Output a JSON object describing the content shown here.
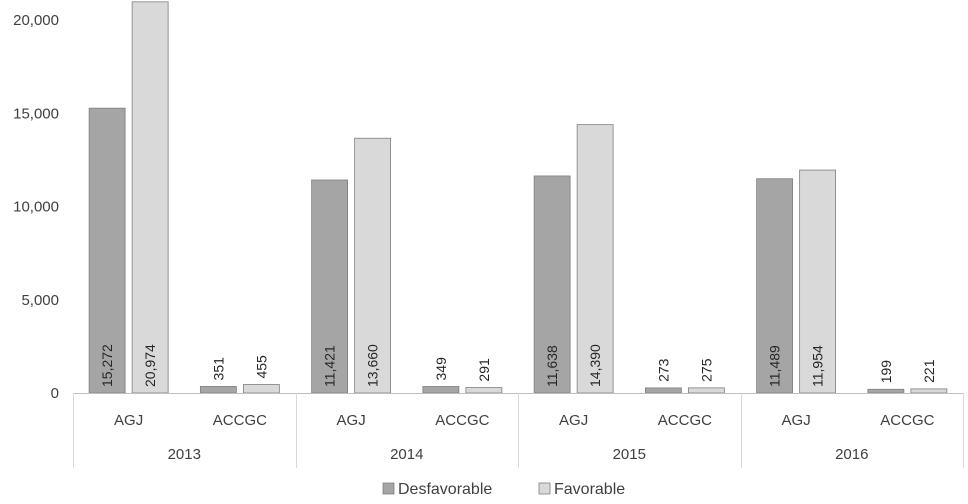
{
  "chart_data": {
    "type": "bar",
    "groups": [
      {
        "year": "2013",
        "categories": [
          {
            "label": "AGJ",
            "values": [
              15272,
              20974
            ],
            "labels": [
              "15,272",
              "20,974"
            ]
          },
          {
            "label": "ACCGC",
            "values": [
              351,
              455
            ],
            "labels": [
              "351",
              "455"
            ]
          }
        ]
      },
      {
        "year": "2014",
        "categories": [
          {
            "label": "AGJ",
            "values": [
              11421,
              13660
            ],
            "labels": [
              "11,421",
              "13,660"
            ]
          },
          {
            "label": "ACCGC",
            "values": [
              349,
              291
            ],
            "labels": [
              "349",
              "291"
            ]
          }
        ]
      },
      {
        "year": "2015",
        "categories": [
          {
            "label": "AGJ",
            "values": [
              11638,
              14390
            ],
            "labels": [
              "11,638",
              "14,390"
            ]
          },
          {
            "label": "ACCGC",
            "values": [
              273,
              275
            ],
            "labels": [
              "273",
              "275"
            ]
          }
        ]
      },
      {
        "year": "2016",
        "categories": [
          {
            "label": "AGJ",
            "values": [
              11489,
              11954
            ],
            "labels": [
              "11,489",
              "11,954"
            ]
          },
          {
            "label": "ACCGC",
            "values": [
              199,
              221
            ],
            "labels": [
              "199",
              "221"
            ]
          }
        ]
      }
    ],
    "series": [
      {
        "name": "Desfavorable",
        "color": "#a5a5a5"
      },
      {
        "name": "Favorable",
        "color": "#d9d9d9"
      }
    ],
    "ylim": [
      0,
      20000
    ],
    "yticks": [
      0,
      5000,
      10000,
      15000,
      20000
    ],
    "ytick_labels": [
      "0",
      "5,000",
      "10,000",
      "15,000",
      "20,000"
    ],
    "grid": false,
    "legend_position": "bottom",
    "title": "",
    "xlabel": "",
    "ylabel": ""
  }
}
